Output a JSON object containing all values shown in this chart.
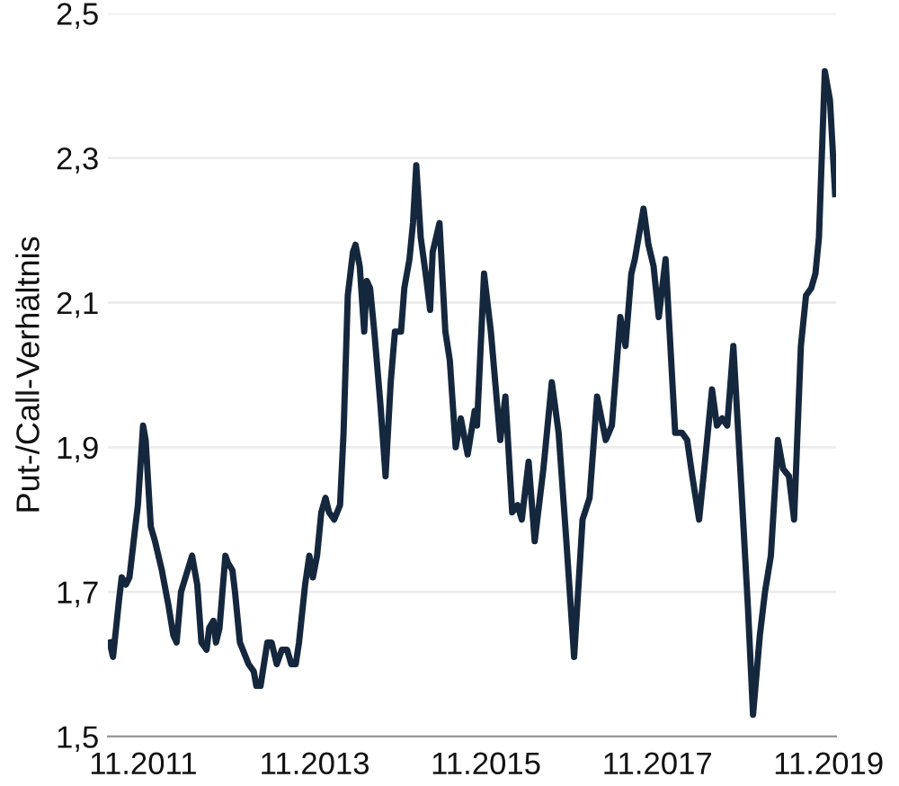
{
  "chart_data": {
    "type": "line",
    "ylabel": "Put-/Call-Verhältnis",
    "x": [
      "2011-06-11",
      "2011-06-25",
      "2011-07-21",
      "2011-08-01",
      "2011-08-19",
      "2011-09-03",
      "2011-09-28",
      "2011-10-09",
      "2011-10-31",
      "2011-11-11",
      "2011-12-03",
      "2011-12-21",
      "2012-01-19",
      "2012-02-17",
      "2012-03-08",
      "2012-03-22",
      "2012-04-10",
      "2012-05-27",
      "2012-06-18",
      "2012-07-06",
      "2012-07-28",
      "2012-08-08",
      "2012-08-26",
      "2012-09-06",
      "2012-09-21",
      "2012-10-16",
      "2012-10-27",
      "2012-11-15",
      "2012-11-26",
      "2012-12-17",
      "2013-01-23",
      "2013-02-14",
      "2013-02-25",
      "2013-03-15",
      "2013-04-13",
      "2013-05-01",
      "2013-05-23",
      "2013-06-14",
      "2013-07-06",
      "2013-07-24",
      "2013-08-12",
      "2013-08-26",
      "2013-09-21",
      "2013-10-09",
      "2013-10-24",
      "2013-11-11",
      "2013-11-29",
      "2013-12-17",
      "2014-01-01",
      "2014-01-23",
      "2014-02-17",
      "2014-03-04",
      "2014-03-22",
      "2014-04-13",
      "2014-04-24",
      "2014-05-12",
      "2014-05-31",
      "2014-06-11",
      "2014-06-25",
      "2014-07-13",
      "2014-08-08",
      "2014-08-30",
      "2014-09-21",
      "2014-10-09",
      "2014-11-04",
      "2014-11-18",
      "2014-12-10",
      "2014-12-25",
      "2015-01-08",
      "2015-01-27",
      "2015-02-17",
      "2015-03-08",
      "2015-03-19",
      "2015-04-17",
      "2015-05-12",
      "2015-05-31",
      "2015-06-25",
      "2015-07-17",
      "2015-08-15",
      "2015-09-14",
      "2015-09-24",
      "2015-10-24",
      "2015-11-22",
      "2016-01-01",
      "2016-01-23",
      "2016-02-21",
      "2016-03-15",
      "2016-04-02",
      "2016-05-01",
      "2016-05-27",
      "2016-07-03",
      "2016-08-08",
      "2016-09-06",
      "2016-10-09",
      "2016-11-11",
      "2016-12-17",
      "2017-01-16",
      "2017-02-17",
      "2017-03-26",
      "2017-04-21",
      "2017-05-27",
      "2017-06-18",
      "2017-07-13",
      "2017-07-28",
      "2017-09-03",
      "2017-09-24",
      "2017-10-16",
      "2017-11-07",
      "2017-12-06",
      "2018-01-16",
      "2018-02-14",
      "2018-03-08",
      "2018-03-30",
      "2018-04-28",
      "2018-05-20",
      "2018-06-22",
      "2018-07-13",
      "2018-08-04",
      "2018-08-26",
      "2018-09-21",
      "2018-10-24",
      "2018-11-22",
      "2018-12-14",
      "2019-01-12",
      "2019-02-03",
      "2019-02-28",
      "2019-03-30",
      "2019-04-21",
      "2019-05-16",
      "2019-06-07",
      "2019-07-06",
      "2019-07-28",
      "2019-08-19",
      "2019-09-06",
      "2019-09-21",
      "2019-10-16",
      "2019-11-07",
      "2019-11-29"
    ],
    "series": [
      {
        "color": "#14273d",
        "values": [
          1.63,
          1.61,
          1.69,
          1.72,
          1.71,
          1.72,
          1.79,
          1.82,
          1.93,
          1.91,
          1.79,
          1.77,
          1.73,
          1.68,
          1.64,
          1.63,
          1.7,
          1.75,
          1.71,
          1.63,
          1.62,
          1.65,
          1.66,
          1.63,
          1.65,
          1.75,
          1.74,
          1.73,
          1.7,
          1.63,
          1.6,
          1.59,
          1.57,
          1.57,
          1.63,
          1.63,
          1.6,
          1.62,
          1.62,
          1.6,
          1.6,
          1.63,
          1.71,
          1.75,
          1.72,
          1.75,
          1.81,
          1.83,
          1.81,
          1.8,
          1.82,
          1.92,
          2.11,
          2.17,
          2.18,
          2.15,
          2.06,
          2.13,
          2.12,
          2.06,
          1.96,
          1.86,
          1.99,
          2.06,
          2.06,
          2.12,
          2.16,
          2.21,
          2.29,
          2.19,
          2.14,
          2.09,
          2.17,
          2.21,
          2.06,
          2.02,
          1.9,
          1.94,
          1.89,
          1.95,
          1.93,
          2.14,
          2.06,
          1.91,
          1.97,
          1.81,
          1.82,
          1.8,
          1.88,
          1.77,
          1.87,
          1.99,
          1.92,
          1.77,
          1.61,
          1.8,
          1.83,
          1.97,
          1.91,
          1.93,
          2.08,
          2.04,
          2.14,
          2.16,
          2.23,
          2.18,
          2.15,
          2.08,
          2.16,
          1.92,
          1.92,
          1.91,
          1.86,
          1.8,
          1.87,
          1.98,
          1.93,
          1.94,
          1.93,
          2.04,
          1.85,
          1.68,
          1.53,
          1.64,
          1.7,
          1.75,
          1.91,
          1.87,
          1.86,
          1.8,
          2.04,
          2.11,
          2.12,
          2.14,
          2.19,
          2.42,
          2.38,
          2.25
        ]
      }
    ],
    "xlim": [
      "2011-06-03",
      "2019-12-03"
    ],
    "ylim": [
      1.5,
      2.5
    ],
    "xticks": [
      {
        "value": "2011-11-01",
        "label": "11.2011"
      },
      {
        "value": "2013-11-01",
        "label": "11.2013"
      },
      {
        "value": "2015-11-01",
        "label": "11.2015"
      },
      {
        "value": "2017-11-01",
        "label": "11.2017"
      },
      {
        "value": "2019-11-01",
        "label": "11.2019"
      }
    ],
    "yticks": [
      {
        "value": 1.5,
        "label": "1,5"
      },
      {
        "value": 1.7,
        "label": "1,7"
      },
      {
        "value": 1.9,
        "label": "1,9"
      },
      {
        "value": 2.1,
        "label": "2,1"
      },
      {
        "value": 2.3,
        "label": "2,3"
      },
      {
        "value": 2.5,
        "label": "2,5"
      }
    ],
    "grid": "y",
    "legend": false,
    "marker": "none",
    "line_style": "solid"
  }
}
